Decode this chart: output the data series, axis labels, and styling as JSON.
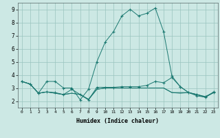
{
  "xlabel": "Humidex (Indice chaleur)",
  "xlim": [
    -0.5,
    23.5
  ],
  "ylim": [
    1.5,
    9.5
  ],
  "yticks": [
    2,
    3,
    4,
    5,
    6,
    7,
    8,
    9
  ],
  "xticks": [
    0,
    1,
    2,
    3,
    4,
    5,
    6,
    7,
    8,
    9,
    10,
    11,
    12,
    13,
    14,
    15,
    16,
    17,
    18,
    19,
    20,
    21,
    22,
    23
  ],
  "bg_color": "#cce8e4",
  "line_color": "#1a7870",
  "grid_color": "#99c4be",
  "lines": [
    {
      "x": [
        0,
        1,
        2,
        3,
        4,
        5,
        6,
        7,
        8,
        9,
        10,
        11,
        12,
        13,
        14,
        15,
        16,
        17,
        18,
        19,
        20,
        21,
        22,
        23
      ],
      "y": [
        3.5,
        3.3,
        2.6,
        3.5,
        3.5,
        3.0,
        3.0,
        2.1,
        2.9,
        5.0,
        6.5,
        7.3,
        8.5,
        9.0,
        8.5,
        8.7,
        9.1,
        7.3,
        3.9,
        3.1,
        2.65,
        2.4,
        2.3,
        2.7
      ],
      "marker": "+"
    },
    {
      "x": [
        0,
        1,
        2,
        3,
        4,
        5,
        6,
        7,
        8,
        9,
        10,
        11,
        12,
        13,
        14,
        15,
        16,
        17,
        18,
        19,
        20,
        21,
        22,
        23
      ],
      "y": [
        3.5,
        3.3,
        2.6,
        2.7,
        2.65,
        2.5,
        2.9,
        2.5,
        2.1,
        3.05,
        3.05,
        3.05,
        3.1,
        3.1,
        3.1,
        3.2,
        3.5,
        3.4,
        3.8,
        3.1,
        2.65,
        2.5,
        2.35,
        2.65
      ],
      "marker": "+"
    },
    {
      "x": [
        0,
        1,
        2,
        3,
        4,
        5,
        6,
        7,
        8,
        9,
        10,
        11,
        12,
        13,
        14,
        15,
        16,
        17,
        18,
        19,
        20,
        21,
        22,
        23
      ],
      "y": [
        3.5,
        3.3,
        2.6,
        2.7,
        2.6,
        2.5,
        2.6,
        2.5,
        2.1,
        2.9,
        3.0,
        3.0,
        3.0,
        3.0,
        3.0,
        3.0,
        3.0,
        3.0,
        2.65,
        2.65,
        2.65,
        2.5,
        2.3,
        2.65
      ],
      "marker": null
    },
    {
      "x": [
        0,
        1,
        2,
        3,
        4,
        5,
        6,
        7,
        8,
        9,
        10,
        11,
        12,
        13,
        14,
        15,
        16,
        17,
        18,
        19,
        20,
        21,
        22,
        23
      ],
      "y": [
        3.5,
        3.3,
        2.6,
        2.7,
        2.6,
        2.5,
        2.6,
        2.5,
        2.15,
        2.9,
        3.0,
        3.0,
        3.0,
        3.0,
        3.0,
        3.0,
        3.0,
        3.0,
        2.65,
        2.6,
        2.65,
        2.5,
        2.3,
        2.65
      ],
      "marker": null
    }
  ]
}
